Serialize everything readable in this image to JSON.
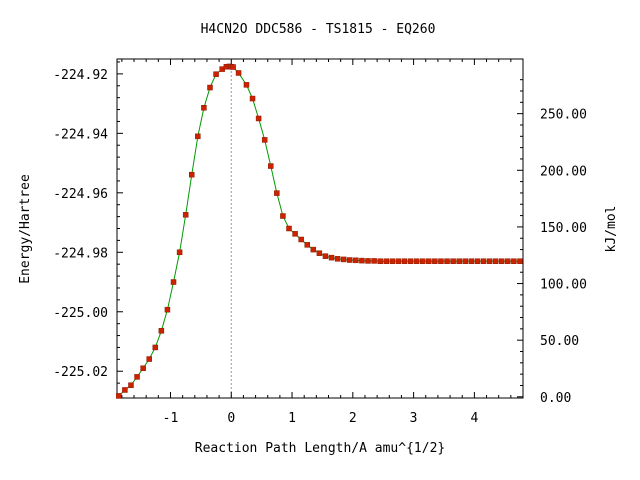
{
  "chart_data": {
    "type": "line",
    "title": "H4CN2O   DDC586 - TS1815 - EQ260",
    "xlabel": "Reaction Path Length/A amu^{1/2}",
    "ylabel": "Energy/Hartree",
    "ylabel_right": "kJ/mol",
    "xlim": [
      -1.88,
      4.8
    ],
    "ylim": [
      -225.029,
      -224.915
    ],
    "x_ticks": [
      -1,
      0,
      1,
      2,
      3,
      4
    ],
    "x_tick_labels": [
      "-1",
      "0",
      "1",
      "2",
      "3",
      "4"
    ],
    "y_ticks": [
      -224.92,
      -224.94,
      -224.96,
      -224.98,
      -225.0,
      -225.02
    ],
    "y_tick_labels": [
      "-224.92",
      "-224.94",
      "-224.96",
      "-224.98",
      "-225.00",
      "-225.02"
    ],
    "y2_ticks": [
      0,
      50,
      100,
      150,
      200,
      250
    ],
    "y2_tick_labels": [
      "0.00",
      "50.00",
      "100.00",
      "150.00",
      "200.00",
      "250.00"
    ],
    "y2_kj_per_hartree": 2625.5,
    "y2_zero_energy": -225.0286,
    "ts_x": 0.0,
    "grid": false,
    "colors": {
      "line": "#009900",
      "marker": "#cc2200",
      "ts_line": "#999999"
    },
    "series": [
      {
        "x": [
          -1.85,
          -1.75,
          -1.65,
          -1.55,
          -1.45,
          -1.35,
          -1.25,
          -1.15,
          -1.05,
          -0.95,
          -0.85,
          -0.75,
          -0.65,
          -0.55,
          -0.45,
          -0.35,
          -0.25,
          -0.15,
          -0.08,
          -0.03,
          0.0,
          0.03,
          0.12,
          0.25,
          0.35,
          0.45,
          0.55,
          0.65,
          0.75,
          0.85,
          0.95,
          1.05,
          1.15,
          1.25,
          1.35,
          1.45,
          1.55,
          1.65,
          1.75,
          1.85,
          1.95,
          2.05,
          2.15,
          2.25,
          2.35,
          2.45,
          2.55,
          2.65,
          2.75,
          2.85,
          2.95,
          3.05,
          3.15,
          3.25,
          3.35,
          3.45,
          3.55,
          3.65,
          3.75,
          3.85,
          3.95,
          4.05,
          4.15,
          4.25,
          4.35,
          4.45,
          4.55,
          4.65,
          4.75
        ],
        "values": [
          -225.0283,
          -225.0263,
          -225.0247,
          -225.0219,
          -225.019,
          -225.0159,
          -225.012,
          -225.0064,
          -224.9993,
          -224.99,
          -224.98,
          -224.9674,
          -224.9539,
          -224.941,
          -224.9314,
          -224.9246,
          -224.9201,
          -224.9184,
          -224.9176,
          -224.9175,
          -224.9176,
          -224.9177,
          -224.9197,
          -224.9237,
          -224.9283,
          -224.935,
          -224.9422,
          -224.951,
          -224.9601,
          -224.9678,
          -224.972,
          -224.9738,
          -224.9757,
          -224.9775,
          -224.9791,
          -224.9803,
          -224.9813,
          -224.9818,
          -224.9822,
          -224.9824,
          -224.9826,
          -224.9827,
          -224.9828,
          -224.9829,
          -224.9829,
          -224.983,
          -224.983,
          -224.983,
          -224.983,
          -224.983,
          -224.983,
          -224.983,
          -224.983,
          -224.983,
          -224.983,
          -224.983,
          -224.983,
          -224.983,
          -224.983,
          -224.983,
          -224.983,
          -224.983,
          -224.983,
          -224.983,
          -224.983,
          -224.983,
          -224.983,
          -224.983,
          -224.983
        ]
      }
    ]
  }
}
